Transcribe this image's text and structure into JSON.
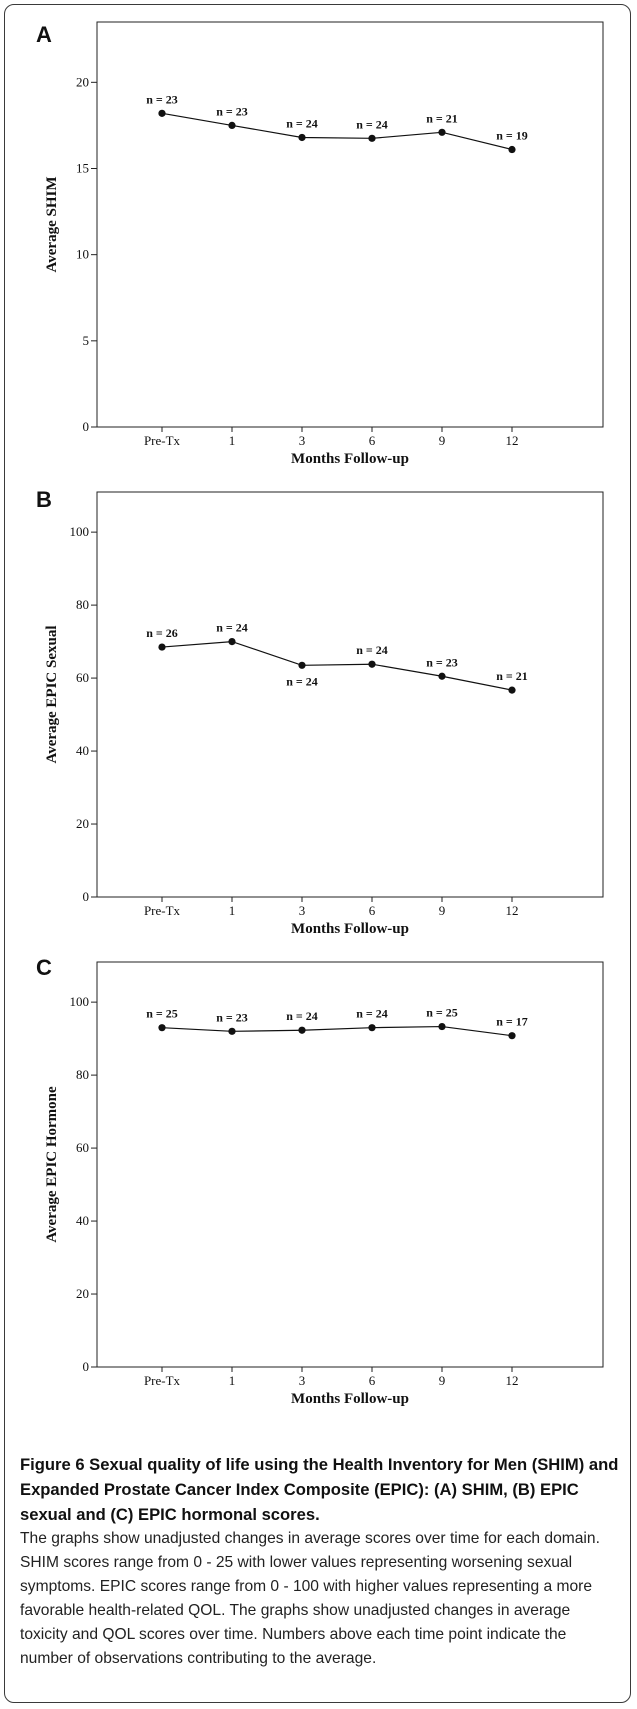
{
  "chart_data": [
    {
      "panel": "A",
      "type": "line",
      "categories": [
        "Pre-Tx",
        "1",
        "3",
        "6",
        "9",
        "12"
      ],
      "values": [
        18.2,
        17.5,
        16.8,
        16.75,
        17.1,
        16.1
      ],
      "n_labels": [
        "n = 23",
        "n = 23",
        "n = 24",
        "n = 24",
        "n = 21",
        "n = 19"
      ],
      "label_pos": [
        "above",
        "above",
        "above",
        "above",
        "above",
        "above"
      ],
      "yticks": [
        "0",
        "5",
        "10",
        "15",
        "20"
      ],
      "ylim": [
        0,
        23.5
      ],
      "xlabel": "Months Follow-up",
      "ylabel": "Average SHIM",
      "grid": false
    },
    {
      "panel": "B",
      "type": "line",
      "categories": [
        "Pre-Tx",
        "1",
        "3",
        "6",
        "9",
        "12"
      ],
      "values": [
        68.5,
        70,
        63.5,
        63.8,
        60.5,
        56.7
      ],
      "n_labels": [
        "n = 26",
        "n = 24",
        "n = 24",
        "n = 24",
        "n = 23",
        "n = 21"
      ],
      "label_pos": [
        "above",
        "above",
        "below",
        "above",
        "above",
        "above"
      ],
      "yticks": [
        "0",
        "20",
        "40",
        "60",
        "80",
        "100"
      ],
      "ylim": [
        0,
        111
      ],
      "xlabel": "Months Follow-up",
      "ylabel": "Average EPIC Sexual",
      "grid": false
    },
    {
      "panel": "C",
      "type": "line",
      "categories": [
        "Pre-Tx",
        "1",
        "3",
        "6",
        "9",
        "12"
      ],
      "values": [
        93,
        92,
        92.3,
        93,
        93.3,
        90.8
      ],
      "n_labels": [
        "n = 25",
        "n = 23",
        "n = 24",
        "n = 24",
        "n = 25",
        "n = 17"
      ],
      "label_pos": [
        "above",
        "above",
        "above",
        "above",
        "above",
        "above"
      ],
      "yticks": [
        "0",
        "20",
        "40",
        "60",
        "80",
        "100"
      ],
      "ylim": [
        0,
        111
      ],
      "xlabel": "Months Follow-up",
      "ylabel": "Average EPIC Hormone",
      "grid": false
    }
  ],
  "caption": {
    "title": "Figure 6 Sexual quality of life using the Health Inventory for Men (SHIM) and Expanded Prostate Cancer Index Composite (EPIC): (A) SHIM, (B) EPIC sexual and (C) EPIC hormonal scores.",
    "body": "The graphs show unadjusted changes in average scores over time for each domain. SHIM scores range from 0 - 25 with lower values representing worsening sexual symptoms. EPIC scores range from 0 - 100 with higher values representing a more favorable health-related QOL. The graphs show unadjusted changes in average toxicity and QOL scores over time. Numbers above each time point indicate the number of observations contributing to the average."
  }
}
